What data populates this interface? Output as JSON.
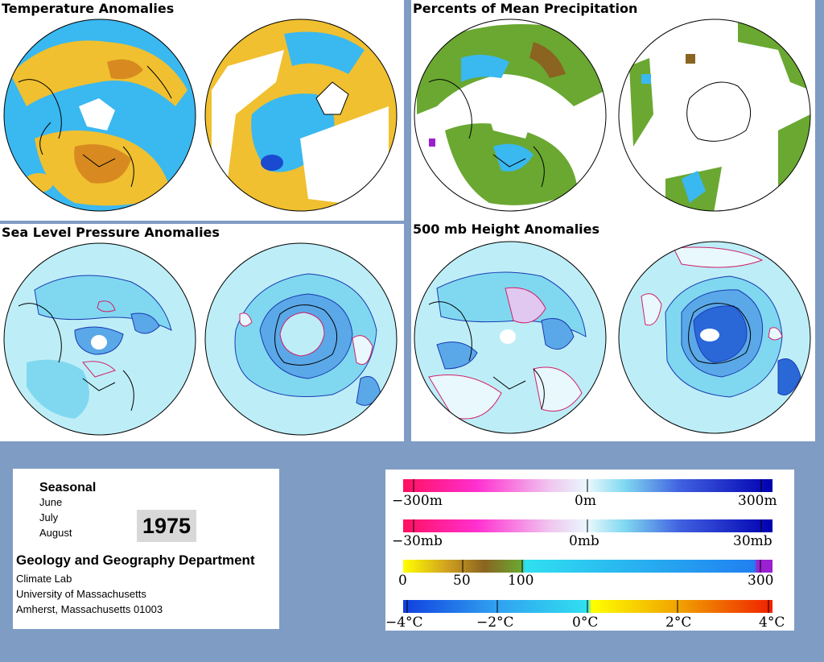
{
  "panels": {
    "temperature": {
      "title": "Temperature Anomalies"
    },
    "precipitation": {
      "title": "Percents of Mean Precipitation"
    },
    "slp": {
      "title": "Sea Level Pressure Anomalies"
    },
    "height500": {
      "title": "500 mb Height Anomalies"
    }
  },
  "info": {
    "period_type": "Seasonal",
    "months": [
      "June",
      "July",
      "August"
    ],
    "year": "1975",
    "department": "Geology and Geography Department",
    "address_lines": [
      "Climate Lab",
      "University of Massachusetts",
      "Amherst, Massachusetts 01003"
    ]
  },
  "legends": {
    "height": {
      "labels": [
        "−300m",
        "0m",
        "300m"
      ]
    },
    "pressure": {
      "labels": [
        "−30mb",
        "0mb",
        "30mb"
      ]
    },
    "precip": {
      "labels": [
        "0",
        "50",
        "100",
        "300"
      ]
    },
    "temp": {
      "labels": [
        "−4°C",
        "−2°C",
        "0°C",
        "2°C",
        "4°C"
      ]
    }
  },
  "colors": {
    "background": "#7f9cc4",
    "anomaly_positive": "#e8b830",
    "anomaly_negative": "#3ab8f0",
    "neutral_light": "#bdeef8",
    "contour_negative": "#1a3ab0",
    "contour_positive": "#d0206a",
    "precip_green": "#6aa832",
    "precip_brown": "#8a6420"
  }
}
